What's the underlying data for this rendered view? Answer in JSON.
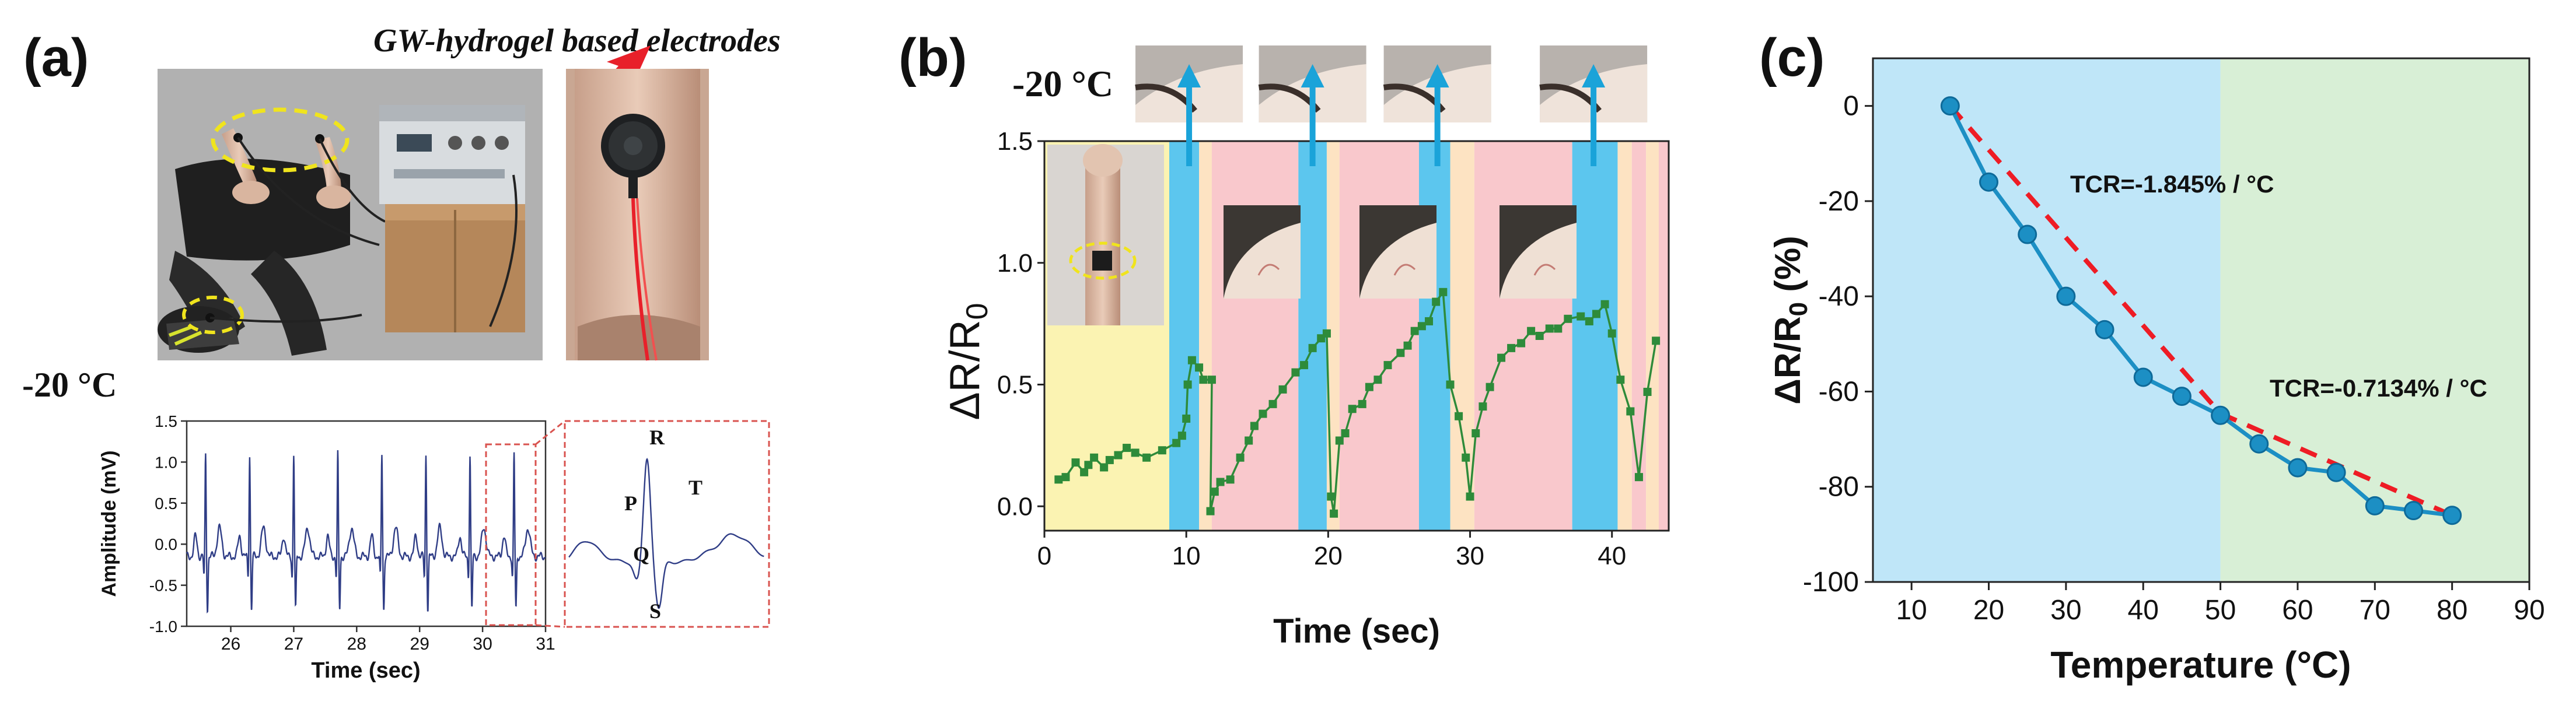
{
  "panel_labels": [
    "(a)",
    "(b)",
    "(c)"
  ],
  "panel_a": {
    "electrode_caption": "GW-hydrogel based electrodes",
    "temperature_label": "-20 °C",
    "zoom_labels": {
      "P": "P",
      "Q": "Q",
      "R": "R",
      "S": "S",
      "T": "T"
    }
  },
  "panel_b": {
    "temperature_label": "-20 °C"
  },
  "colors": {
    "ecg_trace": "#2f3d86",
    "zoom_box": "#d9534f",
    "arrow_red": "#e8202a",
    "arrow_blue": "#1aa3d9",
    "band_yellow": "#fbf3b2",
    "band_blue": "#5cc6ee",
    "band_pink": "#f9c8cc",
    "band_peach": "#fde3c2",
    "green_series": "#2e8b3a",
    "blue_region": "#bfe6f8",
    "green_region": "#d8efd6",
    "tcr_series": "#1c8fc4",
    "fit_line": "#ee1c25"
  },
  "chart_data": [
    {
      "type": "line",
      "panel": "(a)",
      "title": "",
      "xlabel": "Time (sec)",
      "ylabel": "Amplitude (mV)",
      "xlim": [
        25.3,
        31.0
      ],
      "ylim": [
        -1.0,
        1.5
      ],
      "xticks": [
        26,
        27,
        28,
        29,
        30,
        31
      ],
      "yticks": [
        -1.0,
        -0.5,
        0.0,
        0.5,
        1.0,
        1.5
      ],
      "xtick_labels": [
        "26",
        "27",
        "28",
        "29",
        "30",
        "31"
      ],
      "ytick_labels": [
        "-1.0",
        "-0.5",
        "0.0",
        "0.5",
        "1.0",
        "1.5"
      ],
      "beat_times": [
        25.6,
        26.3,
        27.0,
        27.7,
        28.4,
        29.1,
        29.8,
        30.5
      ],
      "beat_peak_mV": 1.0,
      "baseline_mV": -0.15,
      "zoom_region": [
        30.3,
        30.8
      ]
    },
    {
      "type": "line",
      "panel": "(b)",
      "title": "",
      "xlabel": "Time (sec)",
      "ylabel_main": "ΔR/R",
      "ylabel_sub": "0",
      "xlim": [
        0,
        44
      ],
      "ylim": [
        -0.1,
        1.5
      ],
      "xticks": [
        0,
        10,
        20,
        30,
        40
      ],
      "yticks": [
        0.0,
        0.5,
        1.0,
        1.5
      ],
      "xtick_labels": [
        "0",
        "10",
        "20",
        "30",
        "40"
      ],
      "ytick_labels": [
        "0.0",
        "0.5",
        "1.0",
        "1.5"
      ],
      "bands": [
        {
          "from": 0,
          "to": 8.8,
          "color": "yellow"
        },
        {
          "from": 8.8,
          "to": 10.9,
          "color": "blue"
        },
        {
          "from": 10.9,
          "to": 11.8,
          "color": "peach"
        },
        {
          "from": 11.8,
          "to": 17.9,
          "color": "pink"
        },
        {
          "from": 17.9,
          "to": 19.9,
          "color": "blue"
        },
        {
          "from": 19.9,
          "to": 20.8,
          "color": "peach"
        },
        {
          "from": 20.8,
          "to": 26.4,
          "color": "pink"
        },
        {
          "from": 26.4,
          "to": 28.6,
          "color": "blue"
        },
        {
          "from": 28.6,
          "to": 30.3,
          "color": "peach"
        },
        {
          "from": 30.3,
          "to": 37.2,
          "color": "pink"
        },
        {
          "from": 37.2,
          "to": 40.4,
          "color": "blue"
        },
        {
          "from": 40.4,
          "to": 41.4,
          "color": "peach"
        },
        {
          "from": 41.4,
          "to": 42.4,
          "color": "pink"
        },
        {
          "from": 42.4,
          "to": 43.3,
          "color": "peach"
        },
        {
          "from": 43.3,
          "to": 44,
          "color": "pink"
        }
      ],
      "arrow_times": [
        10.2,
        18.9,
        27.7,
        38.7
      ],
      "series": [
        {
          "name": "ΔR/R0",
          "x": [
            1.0,
            1.5,
            2.2,
            2.8,
            3.1,
            3.5,
            4.2,
            4.6,
            5.2,
            5.8,
            6.4,
            7.2,
            8.3,
            9.3,
            9.7,
            10.0,
            10.1,
            10.4,
            10.9,
            11.2,
            11.8,
            11.7,
            12.0,
            12.4,
            13.1,
            13.8,
            14.4,
            14.8,
            15.4,
            16.1,
            16.8,
            17.7,
            18.3,
            18.9,
            19.5,
            19.9,
            20.2,
            20.4,
            20.8,
            21.2,
            21.7,
            22.4,
            22.9,
            23.5,
            24.2,
            25.1,
            25.6,
            26.1,
            26.6,
            27.1,
            27.6,
            28.1,
            28.6,
            29.2,
            29.7,
            30.0,
            30.4,
            30.9,
            31.4,
            32.2,
            32.9,
            33.6,
            34.3,
            34.9,
            35.6,
            36.2,
            36.9,
            37.8,
            38.4,
            38.9,
            39.5,
            40.0,
            40.6,
            41.3,
            41.9,
            42.5,
            43.1
          ],
          "y": [
            0.11,
            0.12,
            0.18,
            0.14,
            0.17,
            0.2,
            0.16,
            0.19,
            0.21,
            0.24,
            0.22,
            0.2,
            0.23,
            0.26,
            0.29,
            0.36,
            0.5,
            0.6,
            0.57,
            0.52,
            0.52,
            -0.02,
            0.06,
            0.1,
            0.11,
            0.2,
            0.27,
            0.33,
            0.38,
            0.42,
            0.48,
            0.55,
            0.58,
            0.65,
            0.69,
            0.71,
            0.04,
            -0.03,
            0.27,
            0.3,
            0.4,
            0.42,
            0.49,
            0.52,
            0.58,
            0.63,
            0.66,
            0.72,
            0.74,
            0.76,
            0.84,
            0.88,
            0.5,
            0.37,
            0.2,
            0.04,
            0.3,
            0.41,
            0.49,
            0.61,
            0.65,
            0.67,
            0.72,
            0.7,
            0.73,
            0.73,
            0.77,
            0.78,
            0.76,
            0.79,
            0.83,
            0.71,
            0.52,
            0.39,
            0.12,
            0.47,
            0.68
          ]
        }
      ]
    },
    {
      "type": "line",
      "panel": "(c)",
      "title": "",
      "xlabel": "Temperature (°C)",
      "ylabel_main": "ΔR/R",
      "ylabel_sub": "0",
      "ylabel_unit": " (%)",
      "xlim": [
        5,
        90
      ],
      "ylim": [
        -100,
        10
      ],
      "xticks": [
        10,
        20,
        30,
        40,
        50,
        60,
        70,
        80,
        90
      ],
      "yticks": [
        0,
        -20,
        -40,
        -60,
        -80,
        -100
      ],
      "xtick_labels": [
        "10",
        "20",
        "30",
        "40",
        "50",
        "60",
        "70",
        "80",
        "90"
      ],
      "ytick_labels": [
        "0",
        "-20",
        "-40",
        "-60",
        "-80",
        "-100"
      ],
      "regions": [
        {
          "from": 5,
          "to": 50,
          "color": "blue"
        },
        {
          "from": 50,
          "to": 90,
          "color": "green"
        }
      ],
      "series": [
        {
          "name": "ΔR/R0",
          "x": [
            15,
            20,
            25,
            30,
            35,
            40,
            45,
            50,
            55,
            60,
            65,
            70,
            75,
            80
          ],
          "y": [
            0,
            -16,
            -27,
            -40,
            -47,
            -57,
            -61,
            -65,
            -71,
            -76,
            -77,
            -84,
            -85,
            -86
          ]
        }
      ],
      "fit_lines": [
        {
          "label": "TCR=-1.845% / °C",
          "from": [
            15,
            0
          ],
          "to": [
            50,
            -64.6
          ]
        },
        {
          "label": "TCR=-0.7134% / °C",
          "from": [
            50,
            -64.6
          ],
          "to": [
            80,
            -86
          ]
        }
      ]
    }
  ]
}
